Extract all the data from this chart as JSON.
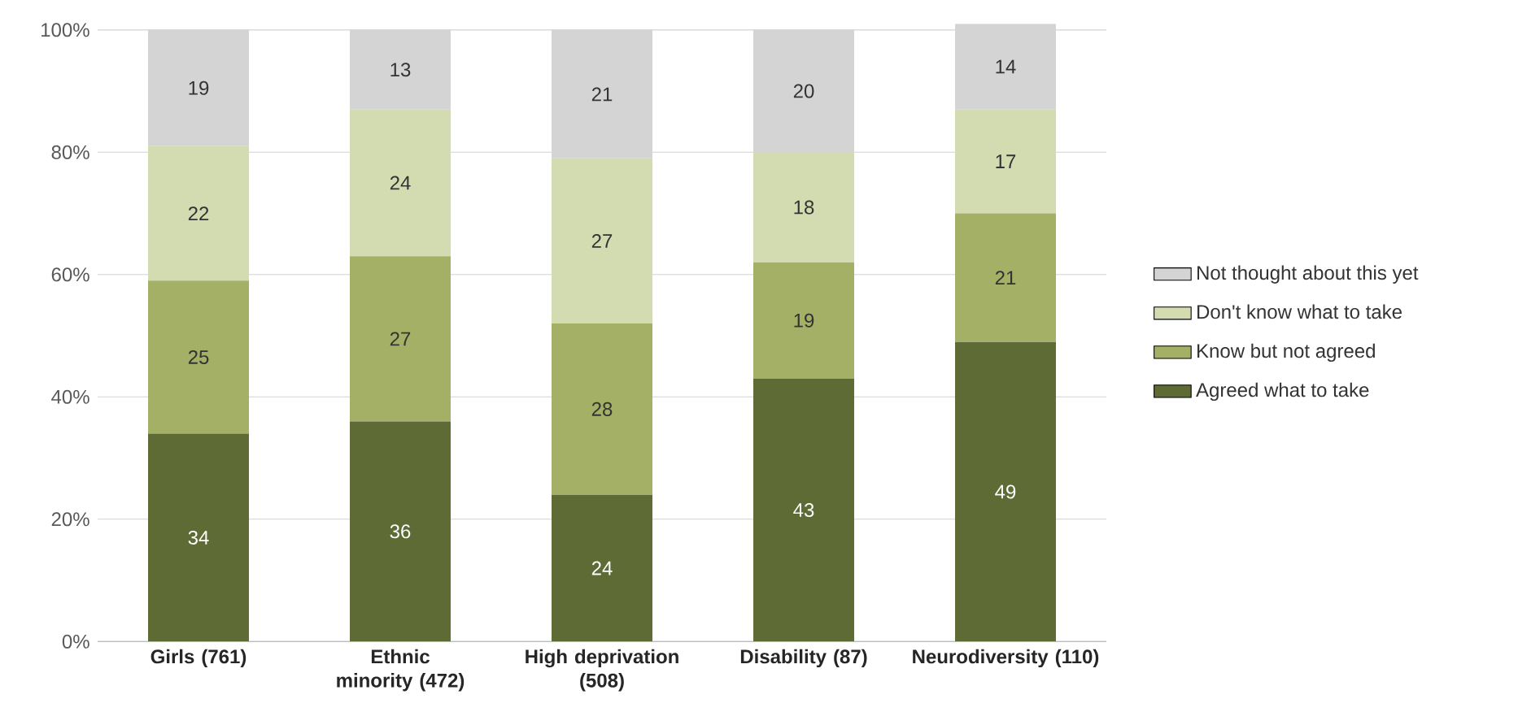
{
  "chart_data": {
    "type": "bar",
    "stacked": true,
    "categories": [
      "Girls (761)",
      "Ethnic minority (472)",
      "High deprivation (508)",
      "Disability (87)",
      "Neurodiversity (110)"
    ],
    "series": [
      {
        "name": "Agreed what to take",
        "color": "#5e6b35",
        "values": [
          34,
          36,
          24,
          43,
          49
        ]
      },
      {
        "name": "Know but not agreed",
        "color": "#a3b065",
        "values": [
          25,
          27,
          28,
          19,
          21
        ]
      },
      {
        "name": "Don't know what to take",
        "color": "#d3dbb0",
        "values": [
          22,
          24,
          27,
          18,
          17
        ]
      },
      {
        "name": "Not thought about this yet",
        "color": "#d4d4d4",
        "values": [
          19,
          13,
          21,
          20,
          14
        ]
      }
    ],
    "ylim": [
      0,
      101
    ],
    "yticks": [
      {
        "value": 0,
        "label": "0%"
      },
      {
        "value": 20,
        "label": "20%"
      },
      {
        "value": 40,
        "label": "40%"
      },
      {
        "value": 60,
        "label": "60%"
      },
      {
        "value": 80,
        "label": "80%"
      },
      {
        "value": 100,
        "label": "100%"
      }
    ],
    "grid": "y",
    "legend": "right",
    "data_labels": true
  }
}
